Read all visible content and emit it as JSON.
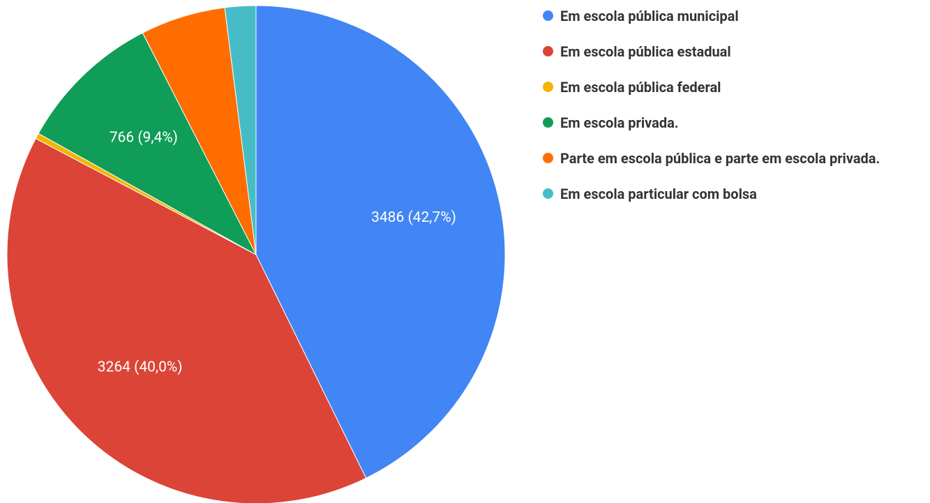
{
  "chart_data": {
    "type": "pie",
    "categories": [
      "Em escola pública municipal",
      "Em escola pública estadual",
      "Em escola pública federal",
      "Em escola privada.",
      "Parte em escola pública e parte em escola privada.",
      "Em escola particular com bolsa"
    ],
    "values": [
      3486,
      3264,
      30,
      766,
      450,
      164
    ],
    "value_labels": [
      "3486 (42,7%)",
      "3264 (40,0%)",
      null,
      "766 (9,4%)",
      null,
      null
    ],
    "colors": [
      "#4285f4",
      "#db4437",
      "#f4b400",
      "#0f9d58",
      "#ff6d00",
      "#46bdc6"
    ],
    "legend": "right"
  }
}
